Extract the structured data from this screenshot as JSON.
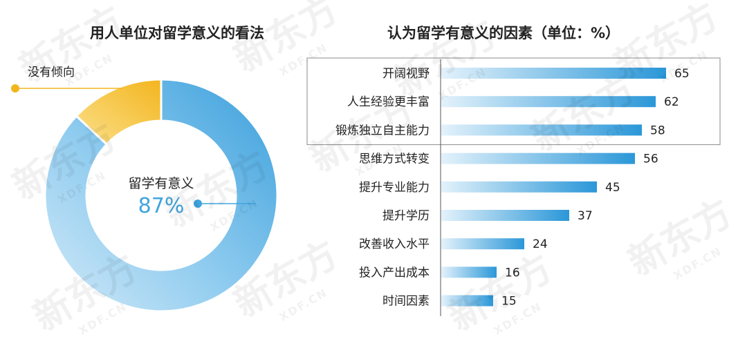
{
  "watermark": {
    "logo": "新东方",
    "sub": "XDF.CN"
  },
  "chart_data": [
    {
      "type": "pie",
      "title": "用人单位对留学意义的看法",
      "categories": [
        "留学有意义",
        "没有倾向"
      ],
      "values": [
        87,
        13
      ],
      "value_label": "87%",
      "colors": [
        "#3fa5de",
        "#f5bd2e"
      ]
    },
    {
      "type": "bar",
      "orientation": "horizontal",
      "title": "认为留学有意义的因素（单位：%）",
      "categories": [
        "开阔视野",
        "人生经验更丰富",
        "锻炼独立自主能力",
        "思维方式转变",
        "提升专业能力",
        "提升学历",
        "改善收入水平",
        "投入产出成本",
        "时间因素"
      ],
      "values": [
        65,
        62,
        58,
        56,
        45,
        37,
        24,
        16,
        15
      ],
      "highlighted_count": 3,
      "color": "#3ea3de"
    }
  ]
}
